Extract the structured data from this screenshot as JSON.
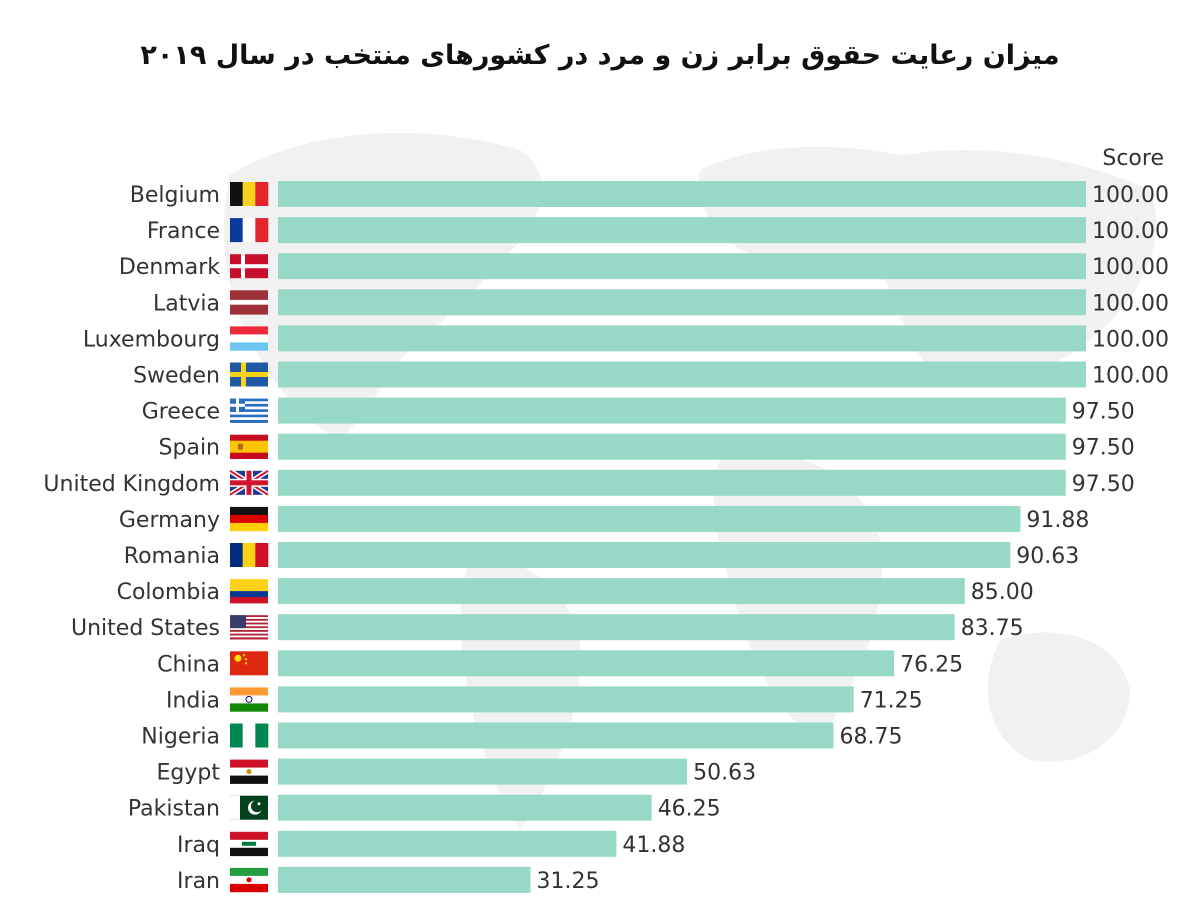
{
  "title": "میزان رعایت حقوق برابر زن و مرد در کشورهای منتخب در سال ۲۰۱۹",
  "chart_data": {
    "type": "bar",
    "orientation": "horizontal",
    "value_header": "Score",
    "xlim": [
      0,
      100
    ],
    "bar_color": "#98d8c6",
    "categories": [
      "Belgium",
      "France",
      "Denmark",
      "Latvia",
      "Luxembourg",
      "Sweden",
      "Greece",
      "Spain",
      "United Kingdom",
      "Germany",
      "Romania",
      "Colombia",
      "United States",
      "China",
      "India",
      "Nigeria",
      "Egypt",
      "Pakistan",
      "Iraq",
      "Iran"
    ],
    "values": [
      100.0,
      100.0,
      100.0,
      100.0,
      100.0,
      100.0,
      97.5,
      97.5,
      97.5,
      91.88,
      90.63,
      85.0,
      83.75,
      76.25,
      71.25,
      68.75,
      50.63,
      46.25,
      41.88,
      31.25
    ],
    "value_labels": [
      "100.00",
      "100.00",
      "100.00",
      "100.00",
      "100.00",
      "100.00",
      "97.50",
      "97.50",
      "97.50",
      "91.88",
      "90.63",
      "85.00",
      "83.75",
      "76.25",
      "71.25",
      "68.75",
      "50.63",
      "46.25",
      "41.88",
      "31.25"
    ]
  }
}
